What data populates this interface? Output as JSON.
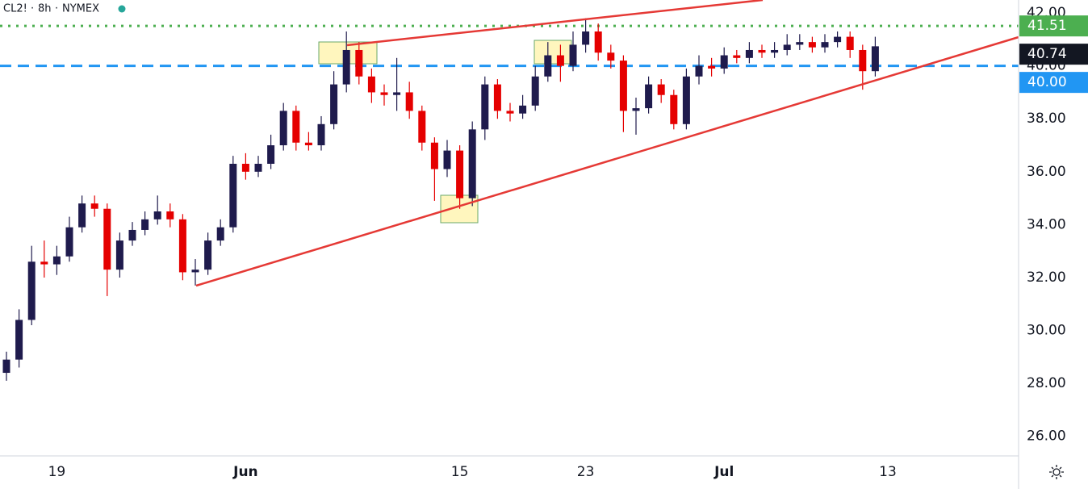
{
  "chart_data": {
    "type": "candlestick",
    "title": "CL2!",
    "interval": "8h",
    "exchange": "NYMEX",
    "categories": [
      null,
      null,
      null,
      null,
      "19",
      null,
      null,
      null,
      null,
      null,
      null,
      null,
      null,
      null,
      null,
      null,
      null,
      null,
      null,
      "Jun",
      null,
      null,
      null,
      null,
      null,
      null,
      null,
      null,
      null,
      null,
      null,
      null,
      null,
      null,
      null,
      null,
      "15",
      null,
      null,
      null,
      null,
      null,
      null,
      null,
      null,
      null,
      "23",
      null,
      null,
      null,
      null,
      null,
      null,
      null,
      null,
      null,
      null,
      "Jul",
      null,
      null,
      null,
      null,
      null,
      null,
      null,
      null,
      null,
      null,
      null,
      null,
      "13"
    ],
    "open": [
      28.4,
      28.9,
      30.4,
      32.6,
      32.5,
      32.8,
      33.9,
      34.8,
      34.6,
      32.3,
      33.4,
      33.8,
      34.2,
      34.5,
      34.2,
      32.2,
      32.3,
      33.4,
      33.9,
      36.3,
      36.0,
      36.3,
      37.0,
      38.3,
      37.1,
      37.0,
      37.8,
      39.3,
      40.6,
      39.6,
      39.0,
      38.9,
      39.0,
      38.3,
      37.1,
      36.1,
      36.8,
      35.0,
      37.6,
      39.3,
      38.3,
      38.2,
      38.5,
      39.6,
      40.4,
      40.0,
      40.8,
      41.3,
      40.5,
      40.2,
      38.3,
      38.4,
      39.3,
      38.9,
      37.8,
      39.6,
      40.0,
      39.9,
      40.4,
      40.3,
      40.6,
      40.5,
      40.6,
      40.8,
      40.9,
      40.7,
      40.9,
      41.1,
      40.6,
      39.8,
      null
    ],
    "high": [
      29.2,
      30.8,
      33.2,
      33.4,
      33.2,
      34.3,
      35.1,
      35.1,
      34.8,
      33.7,
      34.1,
      34.5,
      35.1,
      34.8,
      34.4,
      32.7,
      33.7,
      34.2,
      36.6,
      36.7,
      36.6,
      37.4,
      38.6,
      38.5,
      37.5,
      38.1,
      39.8,
      41.3,
      40.9,
      39.9,
      39.3,
      40.3,
      39.4,
      38.5,
      37.3,
      37.2,
      37.0,
      37.9,
      39.6,
      39.5,
      38.6,
      38.9,
      40.0,
      40.9,
      40.8,
      41.3,
      41.8,
      41.6,
      40.8,
      40.4,
      38.8,
      39.6,
      39.5,
      39.1,
      39.9,
      40.4,
      40.3,
      40.7,
      40.6,
      40.9,
      40.8,
      40.9,
      41.2,
      41.2,
      41.1,
      41.2,
      41.3,
      41.3,
      40.8,
      41.1,
      null
    ],
    "low": [
      28.1,
      28.6,
      30.2,
      32.0,
      32.1,
      32.6,
      33.7,
      34.3,
      31.3,
      32.0,
      33.2,
      33.6,
      34.0,
      33.9,
      31.9,
      31.7,
      32.1,
      33.2,
      33.7,
      35.7,
      35.8,
      36.1,
      36.8,
      36.8,
      36.8,
      36.8,
      37.6,
      39.0,
      39.3,
      38.6,
      38.5,
      38.3,
      38.0,
      36.8,
      34.9,
      35.8,
      34.6,
      34.7,
      37.2,
      38.0,
      37.9,
      38.0,
      38.3,
      39.4,
      39.4,
      39.8,
      40.5,
      40.2,
      39.9,
      37.5,
      37.4,
      38.2,
      38.6,
      37.6,
      37.6,
      39.3,
      39.6,
      39.7,
      40.1,
      40.1,
      40.3,
      40.3,
      40.4,
      40.6,
      40.5,
      40.5,
      40.7,
      40.3,
      39.1,
      39.6,
      null
    ],
    "close": [
      28.9,
      30.4,
      32.6,
      32.5,
      32.8,
      33.9,
      34.8,
      34.6,
      32.3,
      33.4,
      33.8,
      34.2,
      34.5,
      34.2,
      32.2,
      32.3,
      33.4,
      33.9,
      36.3,
      36.0,
      36.3,
      37.0,
      38.3,
      37.1,
      37.0,
      37.8,
      39.3,
      40.6,
      39.6,
      39.0,
      38.9,
      39.0,
      38.3,
      37.1,
      36.1,
      36.8,
      35.0,
      37.6,
      39.3,
      38.3,
      38.2,
      38.5,
      39.6,
      40.4,
      40.0,
      40.8,
      41.3,
      40.5,
      40.2,
      38.3,
      38.4,
      39.3,
      38.9,
      37.8,
      39.6,
      40.0,
      39.9,
      40.4,
      40.3,
      40.6,
      40.5,
      40.6,
      40.8,
      40.9,
      40.7,
      40.9,
      41.1,
      40.6,
      39.8,
      40.74,
      null
    ],
    "up_color": "#1f1b4d",
    "down_color": "#e50000",
    "ylim": [
      25.26,
      42.49
    ],
    "yticks": [
      {
        "value": 26,
        "label": "26.00"
      },
      {
        "value": 28,
        "label": "28.00"
      },
      {
        "value": 30,
        "label": "30.00"
      },
      {
        "value": 32,
        "label": "32.00"
      },
      {
        "value": 34,
        "label": "34.00"
      },
      {
        "value": 36,
        "label": "36.00"
      },
      {
        "value": 38,
        "label": "38.00"
      },
      {
        "value": 40,
        "label": "40.00"
      },
      {
        "value": 42,
        "label": "42.00"
      }
    ],
    "price_labels": [
      {
        "value": 41.51,
        "label": "41.51",
        "color": "#4caf50",
        "line": "dotted"
      },
      {
        "value": 40.74,
        "label": "40.74",
        "color": "#131722",
        "line": "none"
      },
      {
        "value": 40,
        "label": "40.00",
        "color": "#2196f3",
        "line": "dashed"
      }
    ]
  }
}
